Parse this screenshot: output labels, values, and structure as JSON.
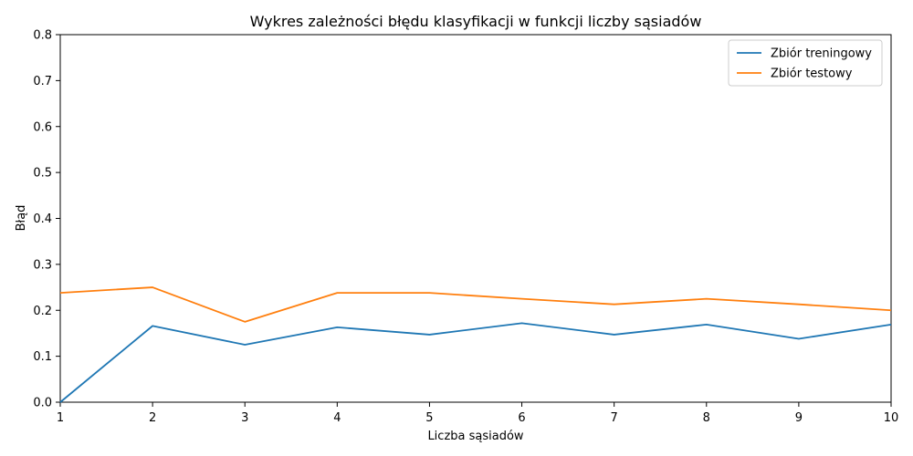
{
  "chart_data": {
    "type": "line",
    "title": "Wykres zależności błędu klasyfikacji w funkcji liczby sąsiadów",
    "xlabel": "Liczba sąsiadów",
    "ylabel": "Błąd",
    "x": [
      1,
      2,
      3,
      4,
      5,
      6,
      7,
      8,
      9,
      10
    ],
    "xlim": [
      1,
      10
    ],
    "ylim": [
      0,
      0.8
    ],
    "x_ticks": [
      "1",
      "2",
      "3",
      "4",
      "5",
      "6",
      "7",
      "8",
      "9",
      "10"
    ],
    "y_ticks": [
      "0.0",
      "0.1",
      "0.2",
      "0.3",
      "0.4",
      "0.5",
      "0.6",
      "0.7",
      "0.8"
    ],
    "grid": false,
    "legend_position": "top-right",
    "series": [
      {
        "name": "Zbiór treningowy",
        "color": "#1f77b4",
        "values": [
          0.0,
          0.166,
          0.125,
          0.163,
          0.147,
          0.172,
          0.147,
          0.169,
          0.138,
          0.169
        ]
      },
      {
        "name": "Zbiór testowy",
        "color": "#ff7f0e",
        "values": [
          0.238,
          0.25,
          0.175,
          0.238,
          0.238,
          0.225,
          0.213,
          0.225,
          0.213,
          0.2
        ]
      }
    ]
  }
}
